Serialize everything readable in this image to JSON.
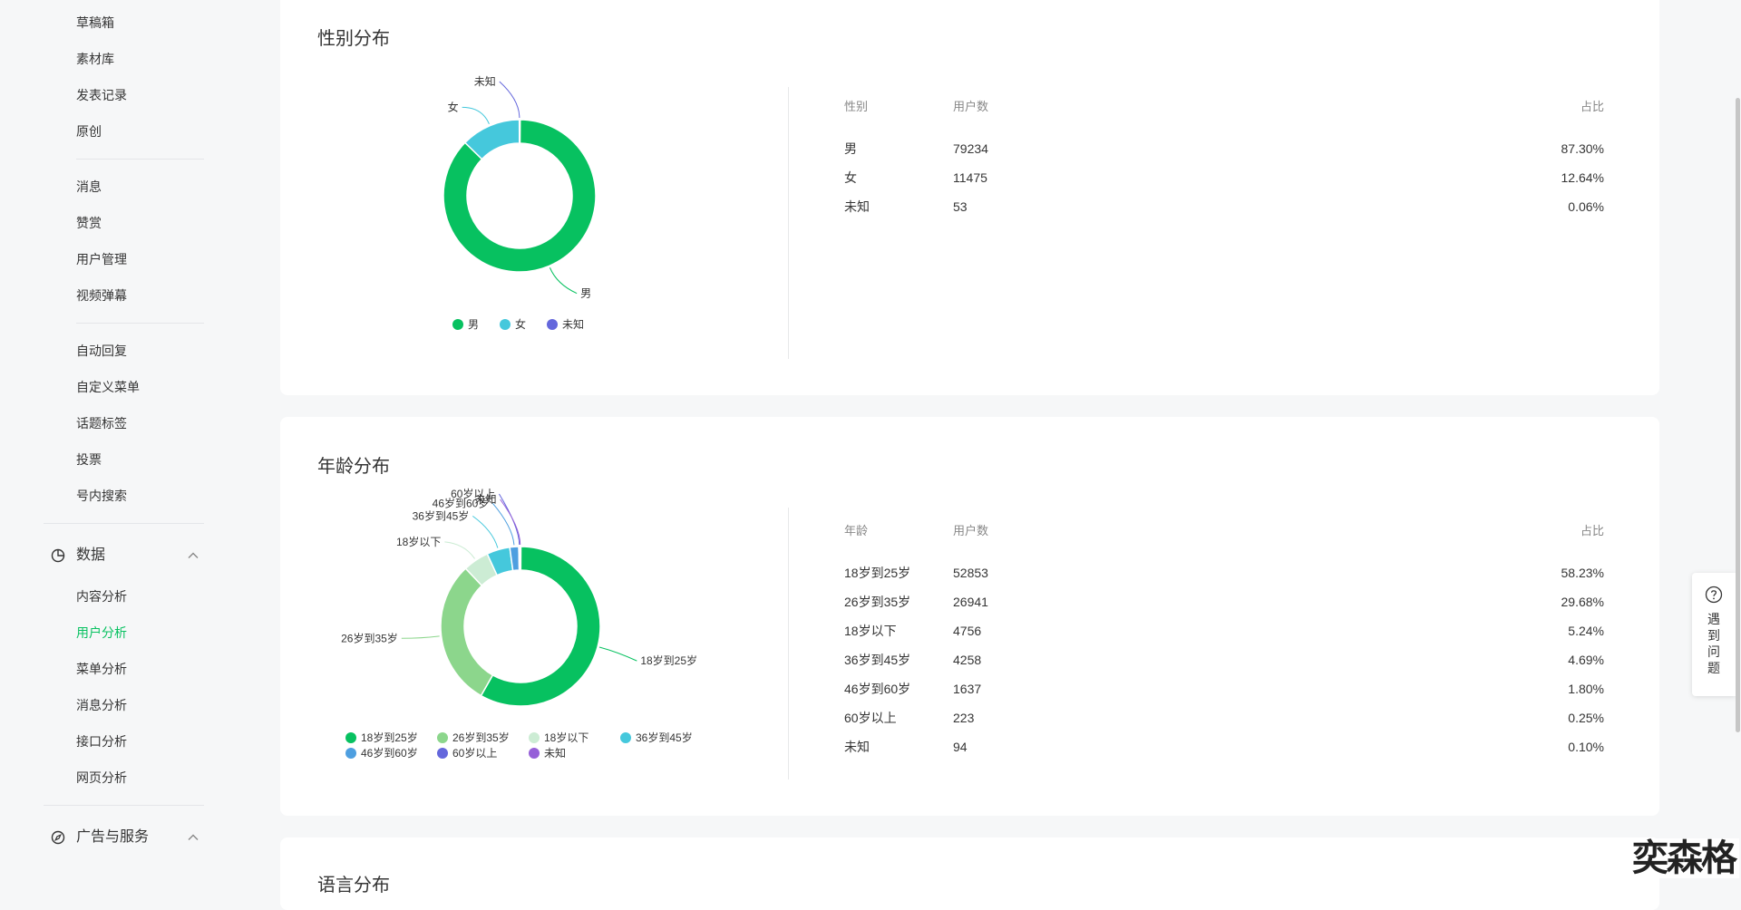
{
  "sidebar": {
    "group1": [
      "草稿箱",
      "素材库",
      "发表记录",
      "原创"
    ],
    "group2": [
      "消息",
      "赞赏",
      "用户管理",
      "视频弹幕"
    ],
    "group3": [
      "自动回复",
      "自定义菜单",
      "话题标签",
      "投票",
      "号内搜索"
    ],
    "data_section": {
      "label": "数据",
      "items": [
        "内容分析",
        "用户分析",
        "菜单分析",
        "消息分析",
        "接口分析",
        "网页分析"
      ],
      "active_index": 1
    },
    "ads_section": {
      "label": "广告与服务"
    }
  },
  "gender_card": {
    "title": "性别分布",
    "table": {
      "headers": [
        "性别",
        "用户数",
        "占比"
      ],
      "rows": [
        [
          "男",
          "79234",
          "87.30%"
        ],
        [
          "女",
          "11475",
          "12.64%"
        ],
        [
          "未知",
          "53",
          "0.06%"
        ]
      ]
    }
  },
  "age_card": {
    "title": "年龄分布",
    "table": {
      "headers": [
        "年龄",
        "用户数",
        "占比"
      ],
      "rows": [
        [
          "18岁到25岁",
          "52853",
          "58.23%"
        ],
        [
          "26岁到35岁",
          "26941",
          "29.68%"
        ],
        [
          "18岁以下",
          "4756",
          "5.24%"
        ],
        [
          "36岁到45岁",
          "4258",
          "4.69%"
        ],
        [
          "46岁到60岁",
          "1637",
          "1.80%"
        ],
        [
          "60岁以上",
          "223",
          "0.25%"
        ],
        [
          "未知",
          "94",
          "0.10%"
        ]
      ]
    }
  },
  "next_card": {
    "title_partial": "语言分布"
  },
  "help": {
    "label": "遇到问题"
  },
  "watermark": "奕森格",
  "chart_data": [
    {
      "type": "pie",
      "donut": true,
      "title": "",
      "categories": [
        "男",
        "女",
        "未知"
      ],
      "values": [
        79234,
        11475,
        53
      ],
      "colors": [
        "#07c160",
        "#45c8dc",
        "#6467dc"
      ],
      "legend": [
        "男",
        "女",
        "未知"
      ],
      "legend_position": "bottom"
    },
    {
      "type": "pie",
      "donut": true,
      "title": "",
      "categories": [
        "18岁到25岁",
        "26岁到35岁",
        "18岁以下",
        "36岁到45岁",
        "46岁到60岁",
        "60岁以上",
        "未知"
      ],
      "values": [
        52853,
        26941,
        4756,
        4258,
        1637,
        223,
        94
      ],
      "colors": [
        "#07c160",
        "#8cd68c",
        "#ccecd4",
        "#45c8dc",
        "#4e9fe0",
        "#6467dc",
        "#9660d8"
      ],
      "legend": [
        "18岁到25岁",
        "26岁到35岁",
        "18岁以下",
        "36岁到45岁",
        "46岁到60岁",
        "60岁以上",
        "未知"
      ],
      "legend_position": "bottom"
    }
  ]
}
